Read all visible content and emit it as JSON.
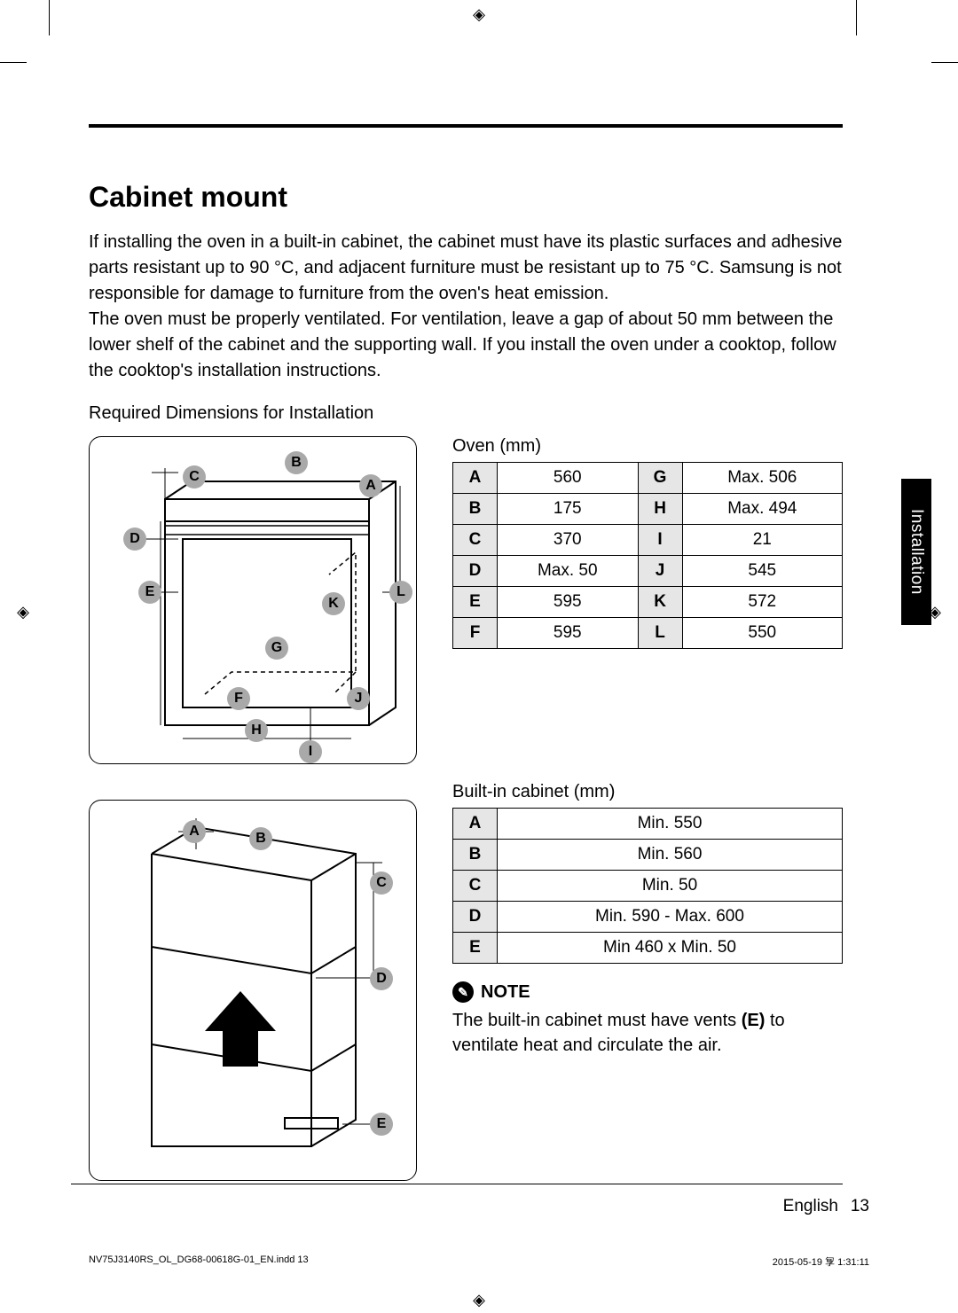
{
  "meta": {
    "section_tab": "Installation",
    "footer_lang": "English",
    "footer_page": "13",
    "indd_left": "NV75J3140RS_OL_DG68-00618G-01_EN.indd   13",
    "indd_right": "2015-05-19   㝁 1:31:11"
  },
  "heading": "Cabinet mount",
  "paragraph": "If installing the oven in a built-in cabinet, the cabinet must have its plastic surfaces and adhesive parts resistant up to 90 °C, and adjacent furniture must be resistant up to 75 °C. Samsung is not responsible for damage to furniture from the oven's heat emission.\nThe oven must be properly ventilated. For ventilation, leave a gap of about 50 mm between the lower shelf of the cabinet and the supporting wall. If you install the oven under a cooktop, follow the cooktop's installation instructions.",
  "sub_heading": "Required Dimensions for Installation",
  "oven_table": {
    "caption": "Oven (mm)",
    "rows": [
      {
        "k1": "A",
        "v1": "560",
        "k2": "G",
        "v2": "Max. 506"
      },
      {
        "k1": "B",
        "v1": "175",
        "k2": "H",
        "v2": "Max. 494"
      },
      {
        "k1": "C",
        "v1": "370",
        "k2": "I",
        "v2": "21"
      },
      {
        "k1": "D",
        "v1": "Max. 50",
        "k2": "J",
        "v2": "545"
      },
      {
        "k1": "E",
        "v1": "595",
        "k2": "K",
        "v2": "572"
      },
      {
        "k1": "F",
        "v1": "595",
        "k2": "L",
        "v2": "550"
      }
    ]
  },
  "cabinet_table": {
    "caption": "Built-in cabinet (mm)",
    "rows": [
      {
        "k": "A",
        "v": "Min. 550"
      },
      {
        "k": "B",
        "v": "Min. 560"
      },
      {
        "k": "C",
        "v": "Min. 50"
      },
      {
        "k": "D",
        "v": "Min. 590 - Max. 600"
      },
      {
        "k": "E",
        "v": "Min 460 x Min. 50"
      }
    ]
  },
  "note": {
    "label": "NOTE",
    "text_before": "The built-in cabinet must have vents ",
    "bold": "(E)",
    "text_after": " to ventilate heat and circulate the air."
  },
  "diagram1_labels": [
    "A",
    "B",
    "C",
    "D",
    "E",
    "F",
    "G",
    "H",
    "I",
    "J",
    "K",
    "L"
  ],
  "diagram2_labels": [
    "A",
    "B",
    "C",
    "D",
    "E"
  ],
  "colors": {
    "label_bg": "#a9a9a9",
    "table_header_bg": "#e6e6e6",
    "text": "#000000",
    "bg": "#ffffff"
  }
}
